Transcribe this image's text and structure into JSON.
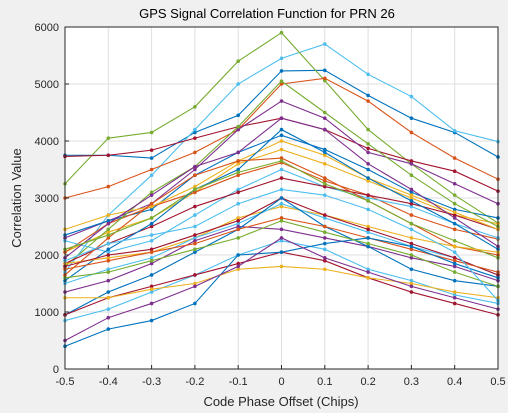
{
  "chart_data": {
    "type": "line",
    "title": "GPS Signal Correlation Function for PRN 26",
    "xlabel": "Code Phase Offset (Chips)",
    "ylabel": "Correlation Value",
    "xlim": [
      -0.5,
      0.5
    ],
    "ylim": [
      0,
      6000
    ],
    "xticks": [
      -0.5,
      -0.4,
      -0.3,
      -0.2,
      -0.1,
      0,
      0.1,
      0.2,
      0.3,
      0.4,
      0.5
    ],
    "xtick_labels": [
      "-0.5",
      "-0.4",
      "-0.3",
      "-0.2",
      "-0.1",
      "0",
      "0.1",
      "0.2",
      "0.3",
      "0.4",
      "0.5"
    ],
    "yticks": [
      0,
      1000,
      2000,
      3000,
      4000,
      5000,
      6000
    ],
    "ytick_labels": [
      "0",
      "1000",
      "2000",
      "3000",
      "4000",
      "5000",
      "6000"
    ],
    "grid": true,
    "marker": "dot",
    "x": [
      -0.5,
      -0.4,
      -0.3,
      -0.2,
      -0.1,
      0,
      0.1,
      0.2,
      0.3,
      0.4,
      0.5
    ],
    "series": [
      {
        "color": "#0072BD",
        "values": [
          3750,
          3750,
          3700,
          4150,
          4450,
          5230,
          5240,
          4800,
          4400,
          4150,
          3720
        ]
      },
      {
        "color": "#4DBEEE",
        "values": [
          1700,
          2700,
          3400,
          4200,
          5000,
          5450,
          5700,
          5170,
          4780,
          4180,
          3990
        ]
      },
      {
        "color": "#77AC30",
        "values": [
          3250,
          4050,
          4150,
          4600,
          5400,
          5900,
          5060,
          4200,
          3600,
          3050,
          2560
        ]
      },
      {
        "color": "#A2142F",
        "values": [
          3730,
          3750,
          3840,
          4050,
          4250,
          4400,
          4200,
          3870,
          3650,
          3470,
          3120
        ]
      },
      {
        "color": "#D95319",
        "values": [
          3000,
          3200,
          3500,
          3800,
          4200,
          5000,
          5100,
          4700,
          4150,
          3700,
          3330
        ]
      },
      {
        "color": "#7E2F8E",
        "values": [
          2300,
          2600,
          2900,
          3500,
          4200,
          4700,
          4400,
          3800,
          3600,
          3250,
          2900
        ]
      },
      {
        "color": "#EDB120",
        "values": [
          2050,
          2400,
          2650,
          3100,
          3600,
          3850,
          3600,
          3300,
          3000,
          2700,
          2550
        ]
      },
      {
        "color": "#0072BD",
        "values": [
          2350,
          2600,
          2800,
          3400,
          3800,
          4100,
          3850,
          3500,
          3100,
          2800,
          2650
        ]
      },
      {
        "color": "#D95319",
        "values": [
          2050,
          2550,
          2850,
          3100,
          3400,
          3620,
          3300,
          3050,
          2700,
          2450,
          2280
        ]
      },
      {
        "color": "#77AC30",
        "values": [
          1800,
          2450,
          3100,
          3550,
          4250,
          5050,
          4500,
          3950,
          3400,
          2900,
          2500
        ]
      },
      {
        "color": "#4DBEEE",
        "values": [
          2250,
          2050,
          2250,
          2700,
          3150,
          3500,
          3200,
          3000,
          2850,
          2550,
          2300
        ]
      },
      {
        "color": "#A2142F",
        "values": [
          1850,
          2200,
          2500,
          2850,
          3100,
          3350,
          3200,
          3050,
          2900,
          2700,
          2450
        ]
      },
      {
        "color": "#EDB120",
        "values": [
          2450,
          2700,
          2850,
          3200,
          3650,
          4000,
          3750,
          3350,
          3050,
          2750,
          2450
        ]
      },
      {
        "color": "#7E2F8E",
        "values": [
          1950,
          2550,
          3050,
          3550,
          3800,
          4400,
          4200,
          3600,
          3150,
          2650,
          2150
        ]
      },
      {
        "color": "#0072BD",
        "values": [
          1550,
          2100,
          2550,
          3150,
          3500,
          4200,
          3800,
          3350,
          2950,
          2550,
          2100
        ]
      },
      {
        "color": "#D95319",
        "values": [
          1650,
          2300,
          2900,
          3400,
          3650,
          3700,
          3350,
          2950,
          2550,
          2150,
          2000
        ]
      },
      {
        "color": "#77AC30",
        "values": [
          2100,
          2350,
          2650,
          3150,
          3450,
          3650,
          3250,
          2950,
          2550,
          2250,
          1950
        ]
      },
      {
        "color": "#EDB120",
        "values": [
          1850,
          1950,
          2050,
          2300,
          2650,
          2850,
          2700,
          2500,
          2300,
          2150,
          2050
        ]
      },
      {
        "color": "#4DBEEE",
        "values": [
          1500,
          1750,
          1950,
          2300,
          2550,
          2900,
          2650,
          2400,
          2150,
          1950,
          1650
        ]
      },
      {
        "color": "#A2142F",
        "values": [
          1800,
          2000,
          2100,
          2350,
          2600,
          3000,
          2700,
          2450,
          2200,
          1950,
          1650
        ]
      },
      {
        "color": "#7E2F8E",
        "values": [
          1350,
          1550,
          1850,
          2250,
          2500,
          2450,
          2300,
          2150,
          1950,
          1800,
          1550
        ]
      },
      {
        "color": "#0072BD",
        "values": [
          950,
          1350,
          1650,
          2050,
          2450,
          3000,
          2500,
          2150,
          1750,
          1550,
          1450
        ]
      },
      {
        "color": "#D95319",
        "values": [
          1750,
          1900,
          2050,
          2200,
          2450,
          2650,
          2500,
          2300,
          2100,
          1900,
          1700
        ]
      },
      {
        "color": "#4DBEEE",
        "values": [
          850,
          1050,
          1350,
          1650,
          2000,
          2250,
          2100,
          1750,
          1550,
          1300,
          1150
        ]
      },
      {
        "color": "#A2142F",
        "values": [
          950,
          1250,
          1450,
          1650,
          1850,
          2050,
          1900,
          1600,
          1350,
          1150,
          950
        ]
      },
      {
        "color": "#0072BD",
        "values": [
          400,
          700,
          850,
          1150,
          2000,
          2050,
          2200,
          2300,
          2150,
          1850,
          1600
        ]
      },
      {
        "color": "#EDB120",
        "values": [
          1250,
          1250,
          1400,
          1500,
          1750,
          1800,
          1750,
          1600,
          1500,
          1350,
          1250
        ]
      },
      {
        "color": "#7E2F8E",
        "values": [
          500,
          900,
          1150,
          1450,
          1800,
          2300,
          1950,
          1700,
          1450,
          1250,
          1050
        ]
      },
      {
        "color": "#77AC30",
        "values": [
          1600,
          1700,
          1900,
          2100,
          2300,
          2600,
          2400,
          2200,
          2000,
          1700,
          1450
        ]
      },
      {
        "color": "#4DBEEE",
        "values": [
          1900,
          2200,
          2350,
          2500,
          2900,
          3150,
          3050,
          2800,
          2450,
          2050,
          1200
        ]
      }
    ]
  }
}
